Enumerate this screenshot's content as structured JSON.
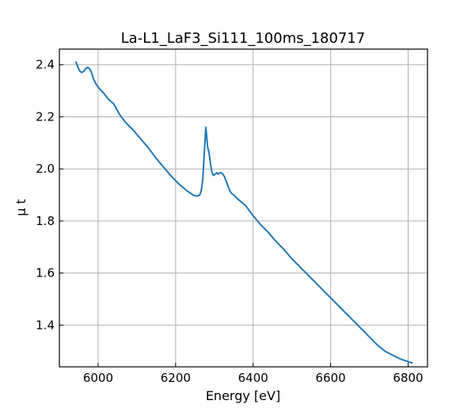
{
  "chart_data": {
    "type": "line",
    "title": "La-L1_LaF3_Si111_100ms_180717",
    "xlabel": "Energy [eV]",
    "ylabel": "μ t",
    "xlim": [
      5900,
      6850
    ],
    "ylim": [
      1.24,
      2.46
    ],
    "xticks": [
      6000,
      6200,
      6400,
      6600,
      6800
    ],
    "yticks": [
      1.4,
      1.6,
      1.8,
      2.0,
      2.2,
      2.4
    ],
    "xtick_labels": [
      "6000",
      "6200",
      "6400",
      "6600",
      "6800"
    ],
    "ytick_labels": [
      "1.4",
      "1.6",
      "1.8",
      "2.0",
      "2.2",
      "2.4"
    ],
    "grid": true,
    "series": [
      {
        "color": "#1f77b4",
        "x": [
          5943,
          5948,
          5953,
          5958,
          5963,
          5968,
          5973,
          5978,
          5983,
          5988,
          5995,
          6005,
          6015,
          6025,
          6040,
          6055,
          6070,
          6090,
          6110,
          6130,
          6150,
          6170,
          6190,
          6210,
          6230,
          6245,
          6255,
          6262,
          6266,
          6270,
          6274,
          6278,
          6281,
          6283,
          6286,
          6290,
          6294,
          6298,
          6302,
          6306,
          6310,
          6314,
          6318,
          6322,
          6326,
          6330,
          6335,
          6340,
          6345,
          6350,
          6360,
          6380,
          6400,
          6420,
          6440,
          6460,
          6480,
          6500,
          6520,
          6540,
          6560,
          6580,
          6600,
          6620,
          6640,
          6660,
          6680,
          6700,
          6720,
          6740,
          6760,
          6780,
          6800,
          6810
        ],
        "y": [
          2.41,
          2.39,
          2.375,
          2.37,
          2.375,
          2.385,
          2.39,
          2.385,
          2.37,
          2.345,
          2.325,
          2.305,
          2.29,
          2.27,
          2.25,
          2.21,
          2.18,
          2.15,
          2.115,
          2.08,
          2.04,
          2.005,
          1.97,
          1.94,
          1.915,
          1.9,
          1.895,
          1.9,
          1.915,
          1.96,
          2.06,
          2.16,
          2.11,
          2.08,
          2.065,
          2.02,
          1.985,
          1.975,
          1.98,
          1.985,
          1.98,
          1.985,
          1.985,
          1.98,
          1.97,
          1.955,
          1.935,
          1.915,
          1.905,
          1.9,
          1.885,
          1.86,
          1.82,
          1.785,
          1.755,
          1.72,
          1.69,
          1.655,
          1.625,
          1.595,
          1.565,
          1.535,
          1.505,
          1.475,
          1.445,
          1.415,
          1.385,
          1.355,
          1.325,
          1.3,
          1.285,
          1.27,
          1.26,
          1.255
        ]
      }
    ]
  }
}
